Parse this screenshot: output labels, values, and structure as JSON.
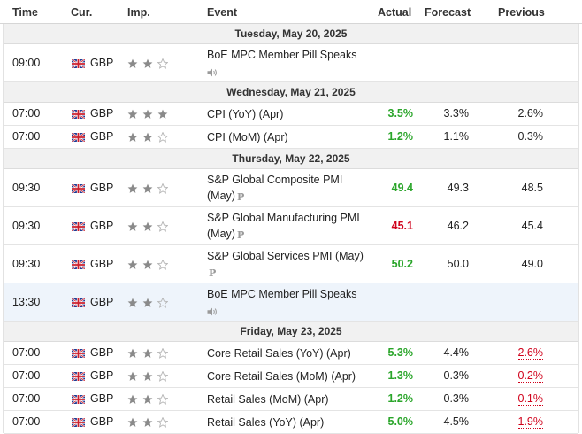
{
  "header": {
    "time": "Time",
    "currency": "Cur.",
    "importance": "Imp.",
    "event": "Event",
    "actual": "Actual",
    "forecast": "Forecast",
    "previous": "Previous"
  },
  "colors": {
    "positive": "#2aa52a",
    "negative": "#d0021b",
    "highlight": "#eef4fb",
    "day_bg": "#f1f1f1"
  },
  "days": [
    {
      "date": "Tuesday, May 20, 2025",
      "events": [
        {
          "time": "09:00",
          "currency": "GBP",
          "importance": 2,
          "event": "BoE MPC Member Pill Speaks",
          "icon": "speaker-icon",
          "actual": "",
          "forecast": "",
          "previous": ""
        }
      ]
    },
    {
      "date": "Wednesday, May 21, 2025",
      "events": [
        {
          "time": "07:00",
          "currency": "GBP",
          "importance": 3,
          "event": "CPI (YoY) (Apr)",
          "actual": "3.5%",
          "forecast": "3.3%",
          "previous": "2.6%"
        },
        {
          "time": "07:00",
          "currency": "GBP",
          "importance": 2,
          "event": "CPI (MoM) (Apr)",
          "actual": "1.2%",
          "forecast": "1.1%",
          "previous": "0.3%"
        }
      ]
    },
    {
      "date": "Thursday, May 22, 2025",
      "events": [
        {
          "time": "09:30",
          "currency": "GBP",
          "importance": 2,
          "event_line1": "S&P Global Composite PMI",
          "event_line2": "(May)",
          "icon": "preliminary-badge-icon",
          "actual": "49.4",
          "forecast": "49.3",
          "previous": "48.5"
        },
        {
          "time": "09:30",
          "currency": "GBP",
          "importance": 2,
          "event_line1": "S&P Global Manufacturing PMI",
          "event_line2": "(May)",
          "icon": "preliminary-badge-icon",
          "actual": "45.1",
          "forecast": "46.2",
          "previous": "45.4"
        },
        {
          "time": "09:30",
          "currency": "GBP",
          "importance": 2,
          "event_line1": "S&P Global Services PMI (May)",
          "icon": "preliminary-badge-icon",
          "actual": "50.2",
          "forecast": "50.0",
          "previous": "49.0"
        },
        {
          "time": "13:30",
          "currency": "GBP",
          "importance": 2,
          "event": "BoE MPC Member Pill Speaks",
          "icon": "speaker-icon",
          "actual": "",
          "forecast": "",
          "previous": ""
        }
      ]
    },
    {
      "date": "Friday, May 23, 2025",
      "events": [
        {
          "time": "07:00",
          "currency": "GBP",
          "importance": 2,
          "event": "Core Retail Sales (YoY) (Apr)",
          "actual": "5.3%",
          "forecast": "4.4%",
          "previous": "2.6%"
        },
        {
          "time": "07:00",
          "currency": "GBP",
          "importance": 2,
          "event": "Core Retail Sales (MoM) (Apr)",
          "actual": "1.3%",
          "forecast": "0.3%",
          "previous": "0.2%"
        },
        {
          "time": "07:00",
          "currency": "GBP",
          "importance": 2,
          "event": "Retail Sales (MoM) (Apr)",
          "actual": "1.2%",
          "forecast": "0.3%",
          "previous": "0.1%"
        },
        {
          "time": "07:00",
          "currency": "GBP",
          "importance": 2,
          "event": "Retail Sales (YoY) (Apr)",
          "actual": "5.0%",
          "forecast": "4.5%",
          "previous": "1.9%"
        }
      ]
    }
  ]
}
